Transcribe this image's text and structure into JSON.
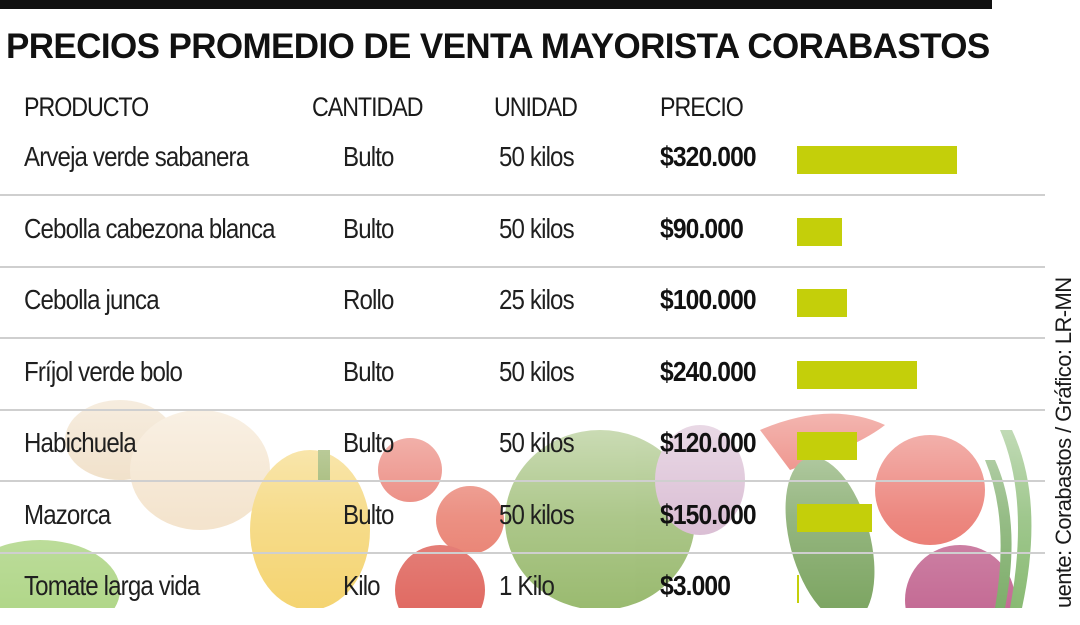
{
  "title": "PRECIOS PROMEDIO DE VENTA MAYORISTA CORABASTOS",
  "credit": "uente: Corabastos / Gráfico: LR-MN",
  "columns": {
    "producto": "PRODUCTO",
    "cantidad": "CANTIDAD",
    "unidad": "UNIDAD",
    "precio": "PRECIO"
  },
  "colors": {
    "bar": "#c4cf0a",
    "title": "#111111",
    "separator": "#cfcfcf"
  },
  "rows": [
    {
      "producto": "Arveja verde sabanera",
      "cantidad": "Bulto",
      "unidad": "50 kilos",
      "precio": "$320.000"
    },
    {
      "producto": "Cebolla cabezona blanca",
      "cantidad": "Bulto",
      "unidad": "50 kilos",
      "precio": "$90.000"
    },
    {
      "producto": "Cebolla junca",
      "cantidad": "Rollo",
      "unidad": "25 kilos",
      "precio": "$100.000"
    },
    {
      "producto": "Fríjol verde bolo",
      "cantidad": "Bulto",
      "unidad": "50 kilos",
      "precio": "$240.000"
    },
    {
      "producto": "Habichuela",
      "cantidad": "Bulto",
      "unidad": "50 kilos",
      "precio": "$120.000"
    },
    {
      "producto": "Mazorca",
      "cantidad": "Bulto",
      "unidad": "50 kilos",
      "precio": "$150.000"
    },
    {
      "producto": "Tomate larga vida",
      "cantidad": "Kilo",
      "unidad": "1 Kilo",
      "precio": "$3.000"
    }
  ],
  "chart_data": {
    "type": "bar",
    "categories": [
      "Arveja verde sabanera",
      "Cebolla cabezona blanca",
      "Cebolla junca",
      "Fríjol verde bolo",
      "Habichuela",
      "Mazorca",
      "Tomate larga vida"
    ],
    "values": [
      320000,
      90000,
      100000,
      240000,
      120000,
      150000,
      3000
    ],
    "title": "PRECIOS PROMEDIO DE VENTA MAYORISTA CORABASTOS",
    "xlabel": "",
    "ylabel": "",
    "orientation": "horizontal",
    "grid": false,
    "legend": "none"
  }
}
